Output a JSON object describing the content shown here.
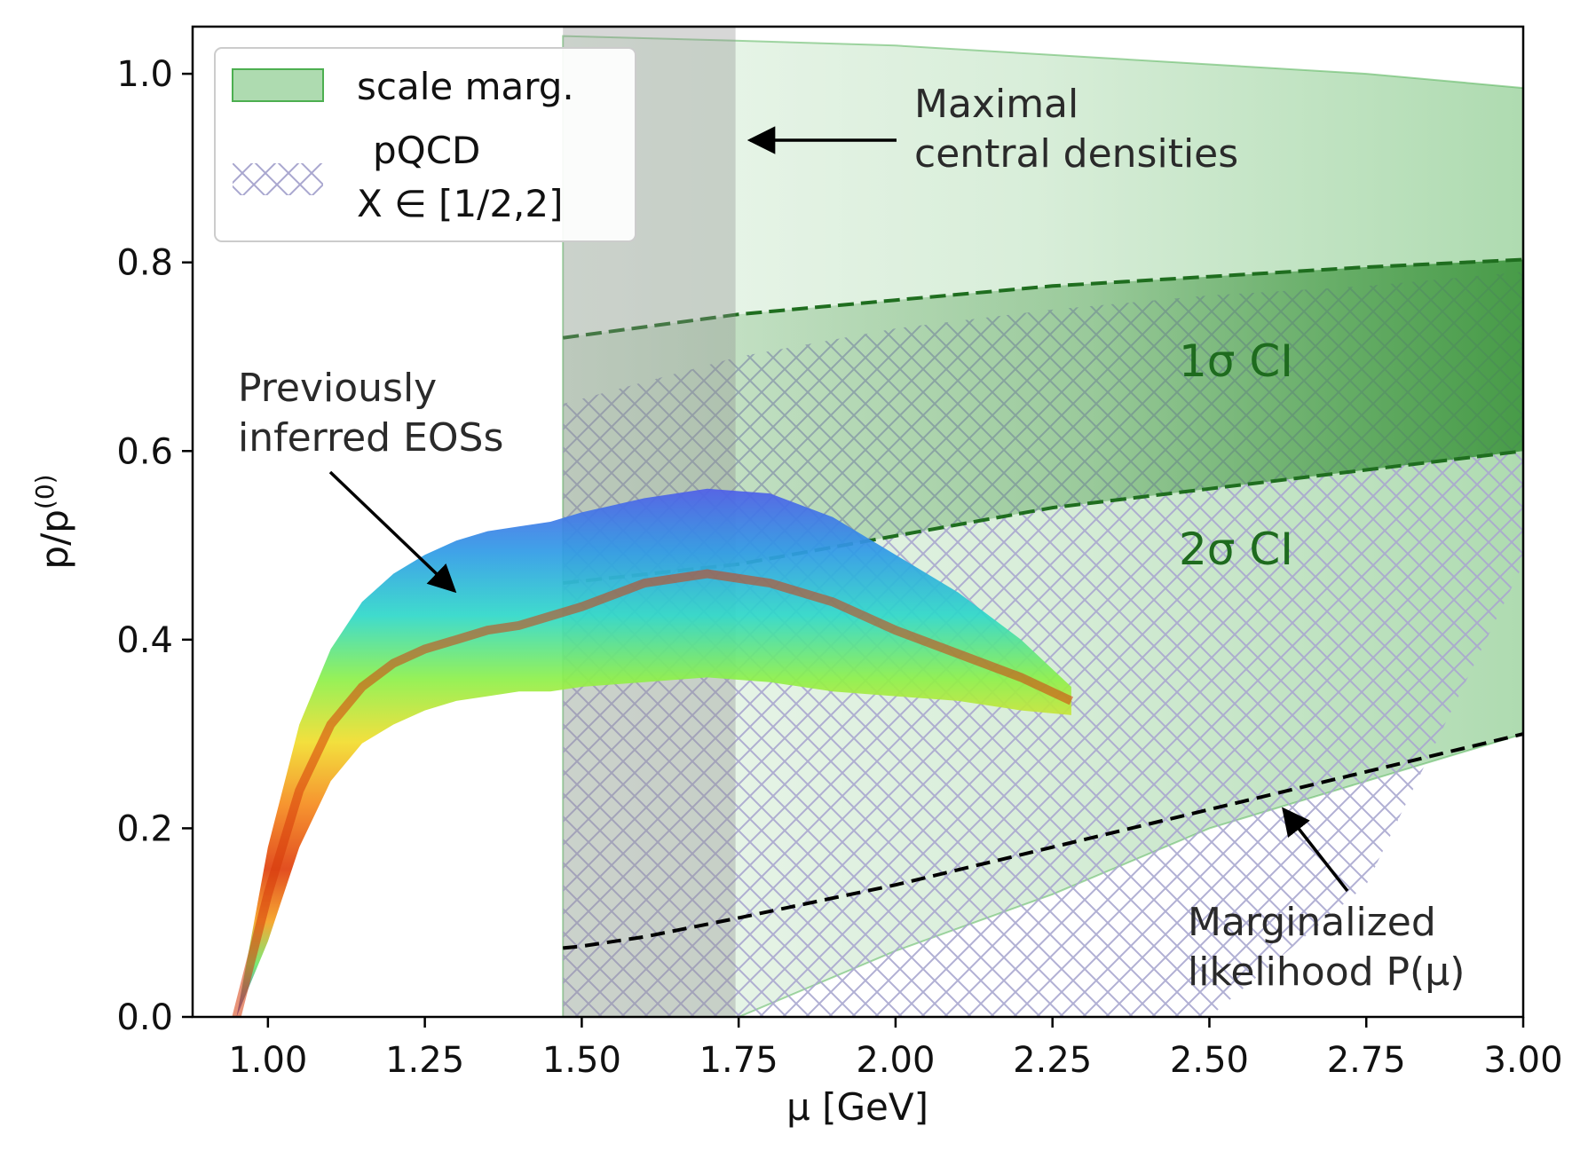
{
  "chart_data": {
    "type": "line",
    "xlabel": "μ [GeV]",
    "ylabel": "p/p",
    "ylabel_sup": "(0)",
    "xlim": [
      0.88,
      3.0
    ],
    "ylim": [
      0.0,
      1.05
    ],
    "xticks": [
      1.0,
      1.25,
      1.5,
      1.75,
      2.0,
      2.25,
      2.5,
      2.75,
      3.0
    ],
    "xtick_labels": [
      "1.00",
      "1.25",
      "1.50",
      "1.75",
      "2.00",
      "2.25",
      "2.50",
      "2.75",
      "3.00"
    ],
    "yticks": [
      0.0,
      0.2,
      0.4,
      0.6,
      0.8,
      1.0
    ],
    "ytick_labels": [
      "0.0",
      "0.2",
      "0.4",
      "0.6",
      "0.8",
      "1.0"
    ],
    "grid": false,
    "legend": {
      "placement": "top-left",
      "entries": [
        {
          "label": "scale marg.",
          "style": "green-fill"
        },
        {
          "label_line1": "pQCD",
          "label_line2": "X ∈ [1/2,2]",
          "style": "hatch"
        }
      ]
    },
    "colors": {
      "scale_marg": "#4caf50",
      "ci_dark": "#2e8b2e",
      "hatch": "#a9a7cf",
      "gray_band": "#8c8c8c",
      "ci_label": "#1e6b1e"
    },
    "gray_band": {
      "x": [
        1.47,
        1.745
      ]
    },
    "scale_marg_band": {
      "x": [
        1.47,
        1.75,
        2.0,
        2.25,
        2.5,
        2.75,
        3.0
      ],
      "upper": [
        1.04,
        1.035,
        1.03,
        1.02,
        1.01,
        1.0,
        0.985
      ],
      "lower": [
        0.0,
        0.0,
        0.07,
        0.13,
        0.2,
        0.25,
        0.3
      ]
    },
    "pqcd_band": {
      "x": [
        1.47,
        1.75,
        2.0,
        2.25,
        2.5,
        2.75,
        3.0
      ],
      "upper": [
        0.65,
        0.7,
        0.73,
        0.75,
        0.765,
        0.775,
        0.79
      ],
      "lower": [
        0.0,
        0.0,
        0.0,
        0.0,
        0.0,
        0.14,
        0.48
      ]
    },
    "ci_1sigma": {
      "label": "1σ CI",
      "x": [
        1.47,
        1.75,
        2.0,
        2.25,
        2.5,
        2.75,
        3.0
      ],
      "upper": [
        0.72,
        0.745,
        0.76,
        0.775,
        0.785,
        0.795,
        0.803
      ],
      "lower": [
        0.46,
        0.48,
        0.51,
        0.54,
        0.56,
        0.58,
        0.6
      ]
    },
    "ci_2sigma": {
      "label": "2σ CI"
    },
    "likelihood_curve": {
      "x": [
        1.47,
        1.5,
        1.6,
        1.75,
        2.0,
        2.25,
        2.5,
        2.75,
        3.0
      ],
      "y": [
        0.073,
        0.075,
        0.085,
        0.105,
        0.14,
        0.18,
        0.22,
        0.26,
        0.3
      ]
    },
    "eos_envelope": {
      "x": [
        0.95,
        1.0,
        1.05,
        1.1,
        1.15,
        1.2,
        1.25,
        1.3,
        1.35,
        1.4,
        1.45,
        1.5,
        1.6,
        1.7,
        1.8,
        1.9,
        2.0,
        2.1,
        2.2,
        2.28
      ],
      "upper": [
        0.0,
        0.18,
        0.31,
        0.39,
        0.44,
        0.47,
        0.49,
        0.505,
        0.515,
        0.52,
        0.525,
        0.535,
        0.55,
        0.56,
        0.555,
        0.53,
        0.49,
        0.45,
        0.4,
        0.35
      ],
      "lower": [
        0.0,
        0.08,
        0.18,
        0.25,
        0.29,
        0.31,
        0.325,
        0.335,
        0.34,
        0.345,
        0.345,
        0.35,
        0.355,
        0.36,
        0.355,
        0.345,
        0.34,
        0.335,
        0.325,
        0.32
      ],
      "core": [
        0.0,
        0.13,
        0.24,
        0.31,
        0.35,
        0.375,
        0.39,
        0.4,
        0.41,
        0.415,
        0.425,
        0.435,
        0.46,
        0.47,
        0.46,
        0.44,
        0.41,
        0.385,
        0.36,
        0.335
      ]
    },
    "annotations": [
      {
        "text_line1": "Maximal",
        "text_line2": "central densities"
      },
      {
        "text_line1": "Previously",
        "text_line2": "inferred EOSs"
      },
      {
        "text_line1": "Marginalized",
        "text_line2": "likelihood P(μ)"
      }
    ]
  }
}
